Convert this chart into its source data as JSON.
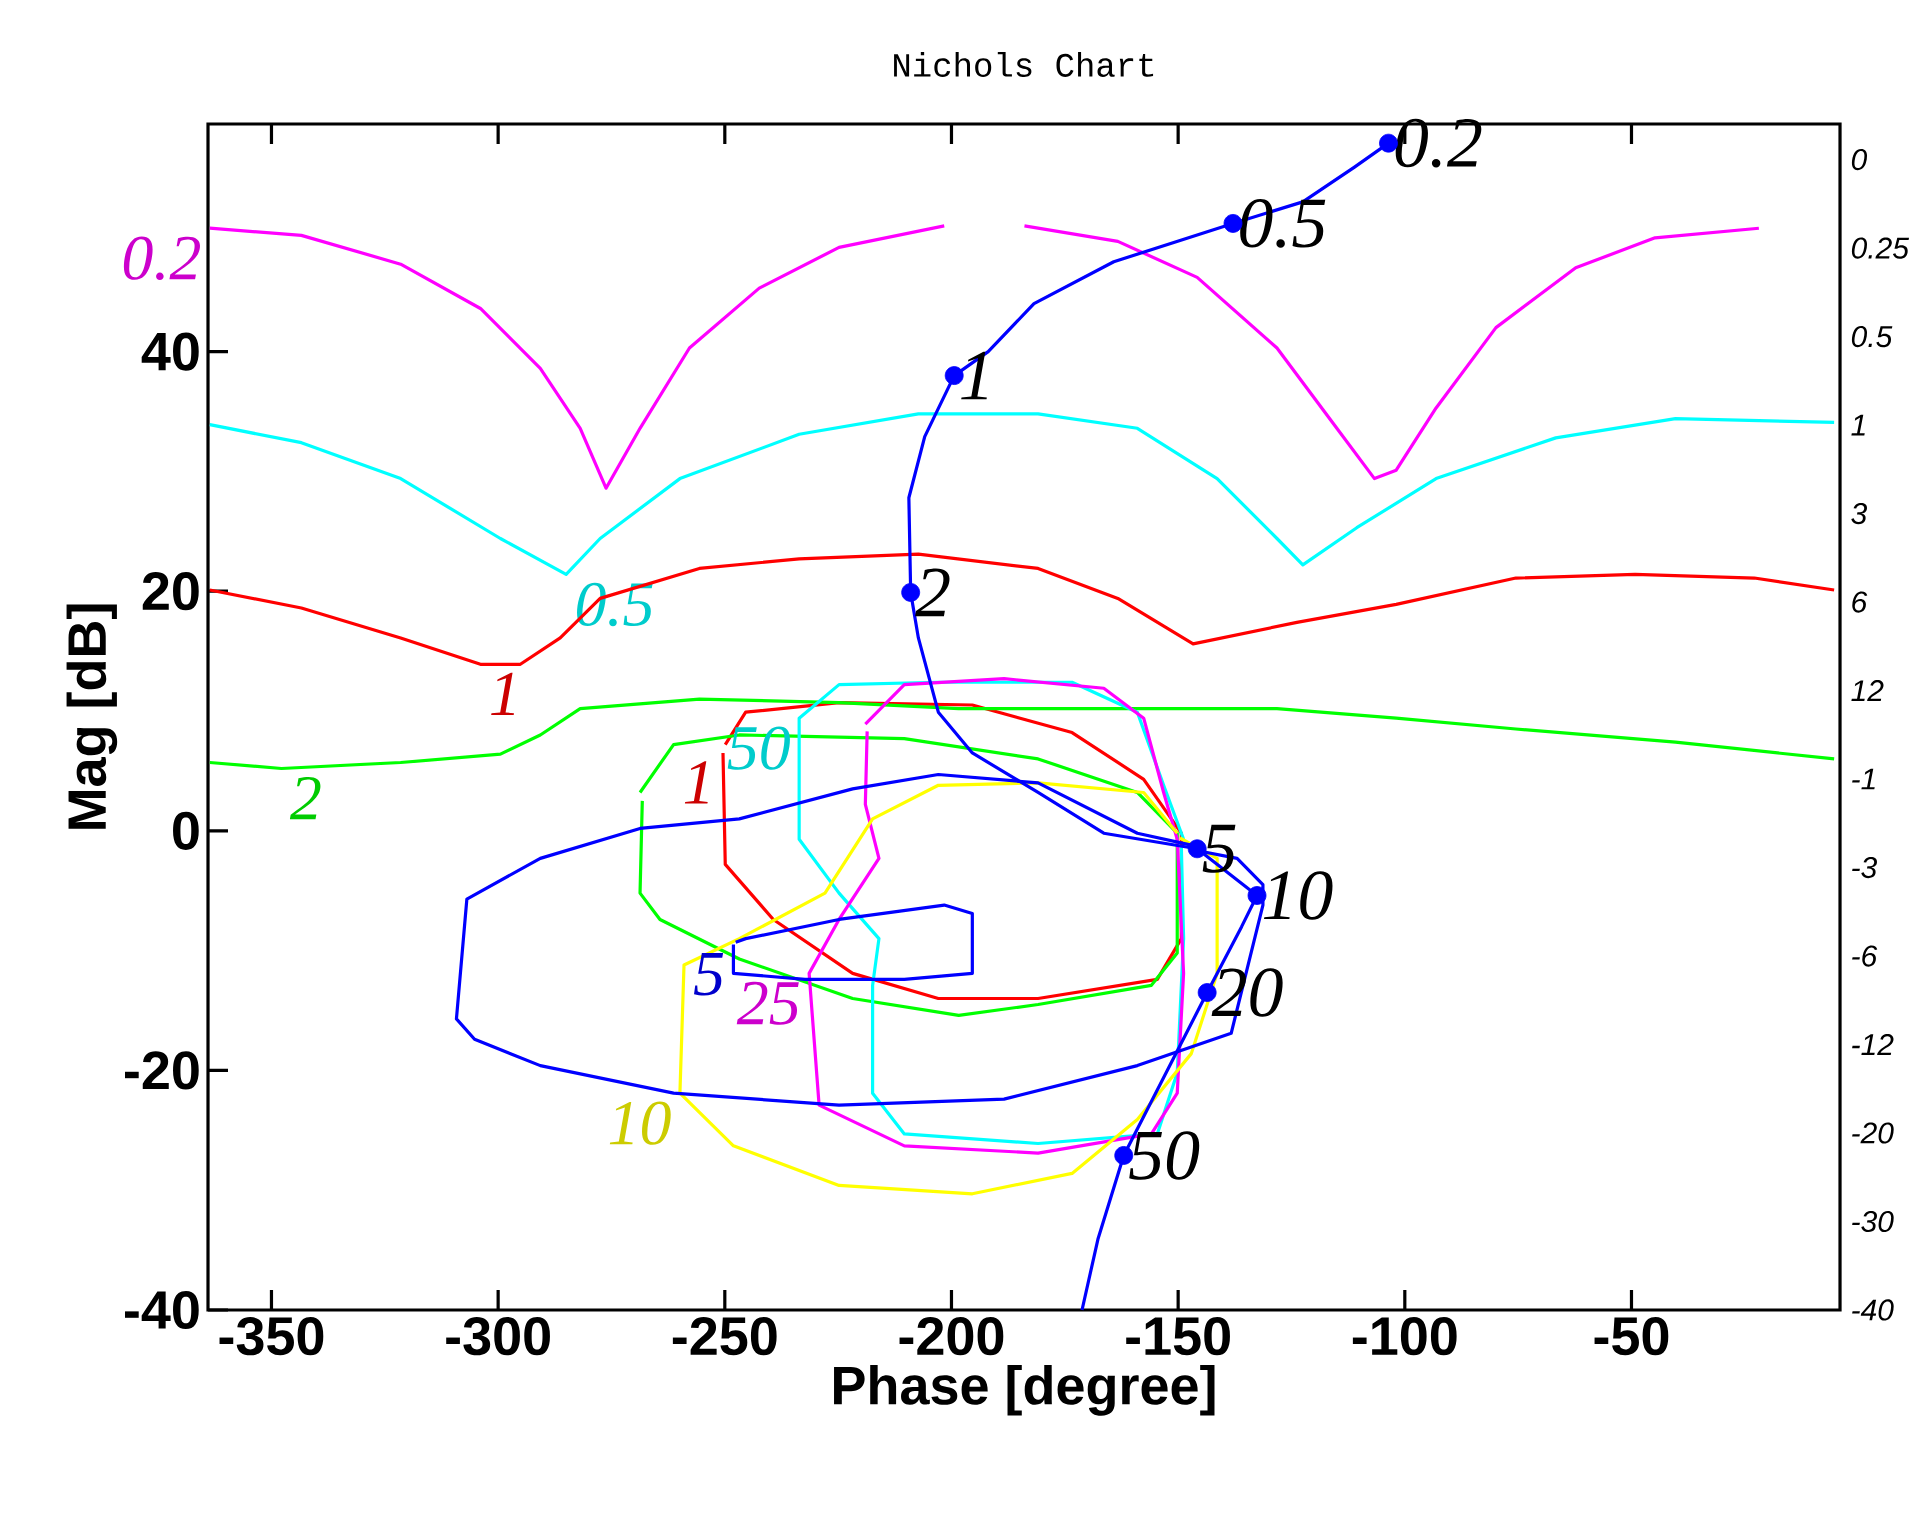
{
  "chart_data": {
    "type": "line",
    "title": "Nichols Chart",
    "xlabel": "Phase [degree]",
    "ylabel": "Mag [dB]",
    "xlim": [
      -364,
      -4
    ],
    "ylim": [
      -40,
      59
    ],
    "xticks": [
      -350,
      -300,
      -250,
      -200,
      -150,
      -100,
      -50
    ],
    "yticks": [
      -40,
      -20,
      0,
      20,
      40
    ],
    "grid": false,
    "series": [
      {
        "name": "0.2",
        "color": "#ff00ff",
        "x": [
          -363.6,
          -343.4,
          -321.5,
          -303.9,
          -290.7,
          -281.9,
          -276.2,
          -268.7,
          -257.8,
          -242.4,
          -224.8,
          -201.6
        ],
        "values": [
          50.3,
          49.7,
          47.3,
          43.6,
          38.6,
          33.6,
          28.6,
          33.6,
          40.3,
          45.3,
          48.7,
          50.5
        ]
      },
      {
        "color": "#ff00ff",
        "x": [
          -183.9,
          -163.3,
          -145.8,
          -128.2,
          -115,
          -106.7,
          -101.9,
          -93.1,
          -79.9,
          -62.3,
          -44.8,
          -21.9
        ],
        "values": [
          50.5,
          49.2,
          46.2,
          40.3,
          33.6,
          29.4,
          30.1,
          35.3,
          42,
          47,
          49.5,
          50.3
        ]
      },
      {
        "name": "0.5",
        "color": "#00ffff",
        "x": [
          -363.6,
          -343.4,
          -321.5,
          -299.5,
          -285,
          -277.5,
          -259.9,
          -233.6,
          -207.3,
          -180.9,
          -159,
          -141.4,
          -128.2,
          -122.5,
          -110.6,
          -93.1,
          -66.7,
          -40.3,
          -5.3
        ],
        "values": [
          33.9,
          32.4,
          29.4,
          24.4,
          21.4,
          24.4,
          29.4,
          33.1,
          34.8,
          34.8,
          33.6,
          29.4,
          24.4,
          22.2,
          25.3,
          29.4,
          32.8,
          34.4,
          34.1
        ]
      },
      {
        "name": "1",
        "color": "#ff0000",
        "x": [
          -363.6,
          -343.4,
          -321.5,
          -303.9,
          -295.1,
          -286.3,
          -277.5,
          -255.6,
          -233.6,
          -207.3,
          -180.9,
          -163.3,
          -146.7,
          -123.8,
          -101.9,
          -75.5,
          -49.2,
          -22.9,
          -5.3,
          null,
          -249.9,
          -245.4,
          -224.8,
          -195.4,
          -173.4,
          -157.6,
          -149.3,
          -149.3,
          -154.6,
          -180.9,
          -202.9,
          -221.8,
          -239.3,
          -249.9,
          -250.4
        ],
        "values": [
          20.1,
          18.6,
          16.1,
          13.9,
          13.9,
          16.1,
          19.4,
          21.9,
          22.7,
          23.1,
          21.9,
          19.4,
          15.6,
          17.4,
          18.9,
          21.1,
          21.4,
          21.1,
          20.1,
          null,
          7.2,
          9.9,
          10.7,
          10.5,
          8.2,
          4.3,
          -0.2,
          -9,
          -12.4,
          -14,
          -14,
          -11.9,
          -7.4,
          -2.8,
          6.5
        ]
      },
      {
        "name": "2",
        "color": "#00ff00",
        "x": [
          -363.6,
          -347.8,
          -321.5,
          -299.5,
          -290.7,
          -281.9,
          -255.6,
          -224.8,
          -198.4,
          -176.5,
          -145.8,
          -128.2,
          -101.9,
          -75.5,
          -40.3,
          -5.3
        ],
        "values": [
          5.7,
          5.2,
          5.7,
          6.4,
          8,
          10.2,
          11,
          10.7,
          10.2,
          10.2,
          10.2,
          10.2,
          9.4,
          8.5,
          7.4,
          6
        ]
      },
      {
        "color": "#00ff00",
        "x": [
          -268.7,
          -261.3,
          -246.8,
          -210.4,
          -180.9,
          -159,
          -150.2,
          -150.2,
          -155.9,
          -180.9,
          -198.4,
          -221.8,
          -246.8,
          -264.3,
          -268.7,
          -268.2
        ],
        "values": [
          3.2,
          7.2,
          8,
          7.7,
          6,
          3.2,
          -0.2,
          -10.2,
          -12.9,
          -14.5,
          -15.4,
          -14,
          -10.7,
          -7.4,
          -5.2,
          2.5
        ]
      },
      {
        "name": "50",
        "color": "#00ffff",
        "x": [
          -148.8,
          -153.2,
          -159,
          -173.4,
          -202.9,
          -224.8,
          -233.6,
          -233.6,
          -224.8,
          -216,
          -217.4,
          -217.4,
          -210.4,
          -180.9,
          -154.6,
          -150.2,
          -148.8,
          -149.3
        ],
        "values": [
          -0.7,
          3.8,
          9.9,
          12.4,
          12.4,
          12.2,
          9.4,
          -0.7,
          -5.2,
          -9,
          -12.9,
          -21.9,
          -25.3,
          -26.1,
          -25.3,
          -20.2,
          -9,
          -1.3
        ]
      },
      {
        "name": "25",
        "color": "#ff00ff",
        "x": [
          -219,
          -210.4,
          -188.4,
          -166.4,
          -157.6,
          -153.2,
          -150.2,
          -148.8,
          -150.2,
          -155.9,
          -180.9,
          -210.4,
          -229.2,
          -231.4,
          -224.8,
          -216,
          -219,
          -218.6
        ],
        "values": [
          8.9,
          12.2,
          12.7,
          11.9,
          9.4,
          3.2,
          -0.7,
          -11.9,
          -21.9,
          -25.3,
          -26.9,
          -26.3,
          -22.9,
          -11.9,
          -7.4,
          -2.3,
          2.2,
          8.3
        ]
      },
      {
        "name": "10",
        "color": "#ffff00",
        "x": [
          -150.2,
          -157.6,
          -180.9,
          -202.9,
          -217.4,
          -227.9,
          -246.8,
          -259,
          -259.9,
          -248.1,
          -224.8,
          -195.4,
          -173.4,
          -159,
          -147.1,
          -141.4,
          -141.4,
          -149.6
        ],
        "values": [
          -0.2,
          3.2,
          4,
          3.8,
          1,
          -5.2,
          -9,
          -11.2,
          -21.9,
          -26.3,
          -29.6,
          -30.3,
          -28.6,
          -24.1,
          -18.6,
          -11.9,
          -2.3,
          -0.6
        ]
      },
      {
        "color": "#0000ff",
        "x": [
          -147.1,
          -159,
          -180.9,
          -202.9,
          -221.8,
          -246.8,
          -268.7,
          -290.7,
          -306.9,
          -309.2,
          -305.2,
          -290.7,
          -261.3,
          -224.8,
          -188.4,
          -159,
          -138.3,
          -131.3,
          -131.3,
          -137,
          -146.5
        ],
        "values": [
          -1.2,
          -0.2,
          4,
          4.7,
          3.5,
          1,
          0.2,
          -2.3,
          -5.7,
          -15.7,
          -17.4,
          -19.6,
          -21.9,
          -22.9,
          -22.4,
          -19.6,
          -16.9,
          -6.2,
          -4.5,
          -2.3,
          -1.6
        ]
      },
      {
        "name": "5",
        "color": "#0000ff",
        "x": [
          -248.1,
          -248.1,
          -232.3,
          -210.4,
          -195.4,
          -195.4,
          -201.6,
          -224.8,
          -245.4,
          -247.6
        ],
        "values": [
          -9.5,
          -11.9,
          -12.4,
          -12.4,
          -11.9,
          -6.9,
          -6.2,
          -7.4,
          -9,
          -9.3
        ]
      },
      {
        "color": "#0000ff",
        "x": [
          -103.6,
          -111.1,
          -122.5,
          -137.9,
          -164.2,
          -181.8,
          -191.9,
          -199.4,
          -205.9,
          -209.4,
          -209,
          -207.3,
          -202.9,
          -195.4,
          -180.9,
          -166.4,
          -145.8,
          -132.6,
          -136,
          -143.6,
          -162,
          -167.7,
          -171.2
        ],
        "values": [
          57.4,
          55.4,
          52.5,
          50.7,
          47.5,
          44,
          40,
          38,
          32.9,
          27.8,
          19.9,
          16.1,
          9.9,
          6.5,
          3.2,
          -0.2,
          -1.5,
          -5.4,
          -8,
          -13.5,
          -27.1,
          -34.1,
          -40
        ]
      },
      {
        "type": "scatter",
        "marker": "circle",
        "color": "#0000ff",
        "x": [
          -103.6,
          -137.9,
          -199.4,
          -209,
          -145.8,
          -132.6,
          -143.6,
          -162
        ],
        "values": [
          57.4,
          50.7,
          38,
          19.9,
          -1.5,
          -5.4,
          -13.5,
          -27.1
        ]
      }
    ],
    "annotations": [
      {
        "text": "0.2",
        "x": -103.6,
        "y": 57.4
      },
      {
        "text": "0.5",
        "x": -137.9,
        "y": 50.7
      },
      {
        "text": "1",
        "x": -199.4,
        "y": 38
      },
      {
        "text": "2",
        "x": -209,
        "y": 19.9
      },
      {
        "text": "5",
        "x": -145.8,
        "y": -1.5
      },
      {
        "text": "10",
        "x": -132.6,
        "y": -5.4
      },
      {
        "text": "20",
        "x": -143.6,
        "y": -13.5
      },
      {
        "text": "50",
        "x": -162,
        "y": -27.1
      },
      "0",
      "0.25",
      "0.5",
      "1",
      "3",
      "6",
      "12",
      "-1",
      "-3",
      "-6",
      "-12",
      "-20",
      "-30",
      "-40"
    ]
  }
}
